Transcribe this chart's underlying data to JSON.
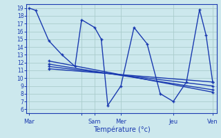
{
  "xlabel": "Température (°c)",
  "background_color": "#cce8ed",
  "grid_color": "#aacccc",
  "line_color": "#1a3ab0",
  "marker": "+",
  "yticks": [
    6,
    7,
    8,
    9,
    10,
    11,
    12,
    13,
    14,
    15,
    16,
    17,
    18,
    19
  ],
  "ylim": [
    5.5,
    19.5
  ],
  "xlim": [
    -0.2,
    14.3
  ],
  "xtick_pos": [
    0,
    4,
    5,
    7,
    11,
    14
  ],
  "xtick_lab": [
    "Mar",
    "",
    "Sam",
    "Mer",
    "Jeu",
    "Ven"
  ],
  "main_x": [
    0,
    0.5,
    1.5,
    2.5,
    3.5,
    4,
    5,
    5.5,
    6,
    7,
    8,
    9,
    10,
    11,
    12,
    13,
    13.5,
    14
  ],
  "main_y": [
    19,
    18.7,
    14.8,
    13.0,
    11.5,
    17.5,
    16.5,
    15.0,
    6.5,
    9.0,
    16.5,
    14.4,
    8.0,
    7.0,
    9.5,
    18.8,
    15.5,
    9.5
  ],
  "diag_lines": [
    {
      "x": [
        1.5,
        14
      ],
      "y": [
        12.2,
        8.2
      ]
    },
    {
      "x": [
        1.5,
        14
      ],
      "y": [
        11.8,
        8.5
      ]
    },
    {
      "x": [
        1.5,
        14
      ],
      "y": [
        11.5,
        9.0
      ]
    },
    {
      "x": [
        1.5,
        14
      ],
      "y": [
        11.2,
        9.5
      ]
    }
  ]
}
